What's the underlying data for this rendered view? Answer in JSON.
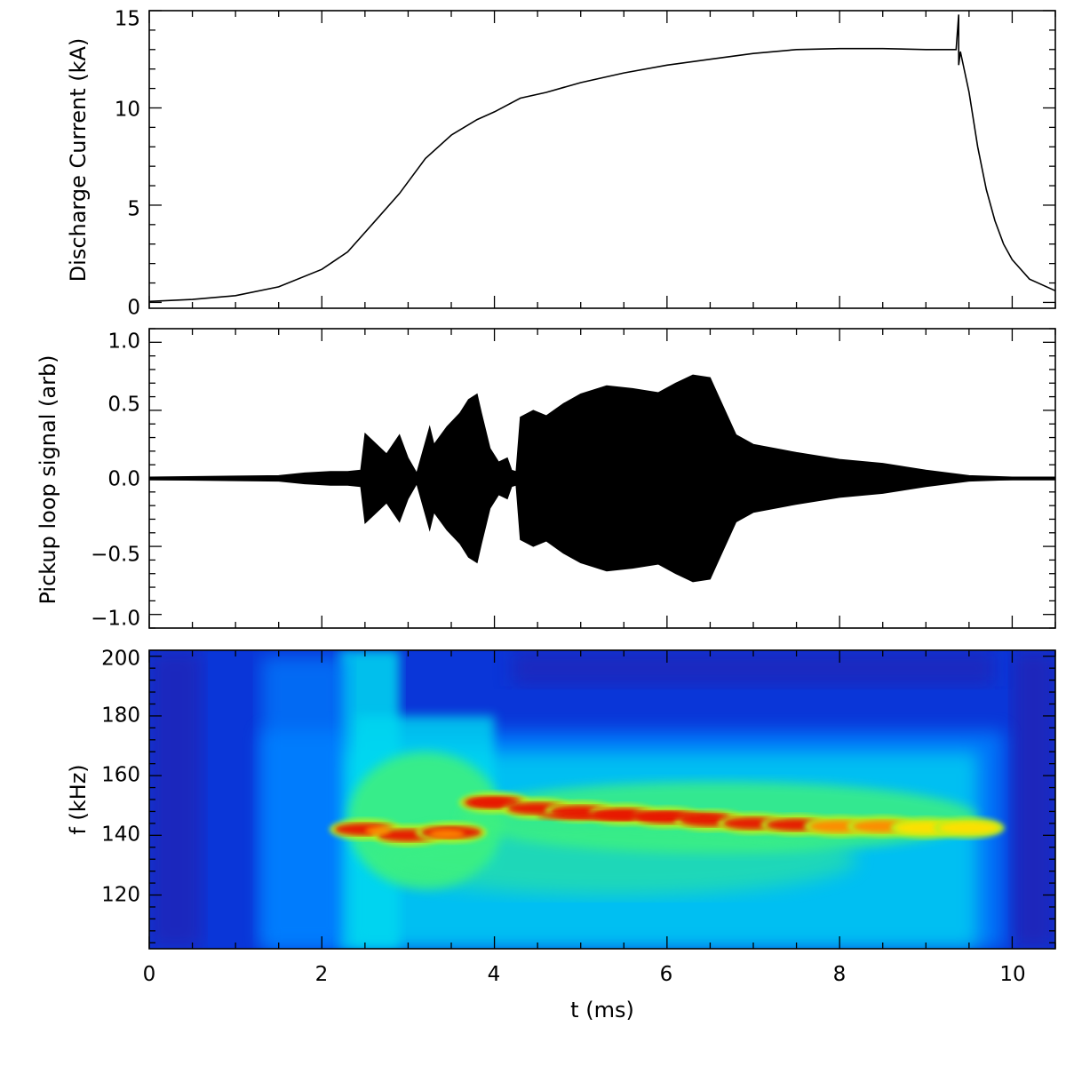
{
  "chart_data": [
    {
      "type": "line",
      "panel": "top",
      "ylabel": "Discharge Current (kA)",
      "xlim": [
        0,
        10.5
      ],
      "ylim": [
        -0.3,
        15
      ],
      "yticks": [
        0,
        5,
        10,
        15
      ],
      "ytick_labels": [
        "0",
        "5",
        "10",
        "15"
      ],
      "series": [
        {
          "x": [
            0,
            0.5,
            1.0,
            1.5,
            2.0,
            2.3,
            2.6,
            2.9,
            3.2,
            3.5,
            3.8,
            4.0,
            4.3,
            4.6,
            5.0,
            5.5,
            6.0,
            6.5,
            7.0,
            7.5,
            8.0,
            8.5,
            9.0,
            9.35,
            9.38,
            9.38,
            9.4,
            9.5,
            9.6,
            9.7,
            9.8,
            9.9,
            10.0,
            10.2,
            10.5
          ],
          "y": [
            0.05,
            0.15,
            0.35,
            0.8,
            1.7,
            2.6,
            4.1,
            5.6,
            7.4,
            8.6,
            9.4,
            9.8,
            10.5,
            10.8,
            11.3,
            11.8,
            12.2,
            12.5,
            12.8,
            13.0,
            13.05,
            13.05,
            13.0,
            13.0,
            14.8,
            12.2,
            12.9,
            10.8,
            8.0,
            5.8,
            4.2,
            3.0,
            2.2,
            1.2,
            0.6
          ]
        }
      ]
    },
    {
      "type": "area",
      "panel": "middle",
      "ylabel": "Pickup loop signal (arb)",
      "xlim": [
        0,
        10.5
      ],
      "ylim": [
        -1.1,
        1.1
      ],
      "yticks": [
        -1.0,
        -0.5,
        0.0,
        0.5,
        1.0
      ],
      "ytick_labels": [
        "−1.0",
        "−0.5",
        "0.0",
        "0.5",
        "1.0"
      ],
      "envelope": {
        "x": [
          0,
          1.5,
          1.8,
          2.1,
          2.3,
          2.45,
          2.5,
          2.6,
          2.75,
          2.9,
          3.0,
          3.1,
          3.25,
          3.3,
          3.45,
          3.6,
          3.7,
          3.8,
          3.85,
          3.95,
          4.05,
          4.15,
          4.2,
          4.25,
          4.3,
          4.45,
          4.6,
          4.8,
          5.0,
          5.3,
          5.6,
          5.9,
          6.1,
          6.3,
          6.5,
          6.6,
          6.8,
          7.0,
          7.5,
          8.0,
          8.5,
          9.0,
          9.5,
          10.0,
          10.5
        ],
        "upper": [
          0.01,
          0.02,
          0.04,
          0.05,
          0.05,
          0.06,
          0.33,
          0.27,
          0.18,
          0.32,
          0.15,
          0.04,
          0.38,
          0.25,
          0.38,
          0.48,
          0.58,
          0.62,
          0.48,
          0.22,
          0.12,
          0.15,
          0.06,
          0.05,
          0.45,
          0.5,
          0.46,
          0.55,
          0.62,
          0.68,
          0.66,
          0.63,
          0.7,
          0.76,
          0.74,
          0.6,
          0.32,
          0.25,
          0.19,
          0.14,
          0.11,
          0.06,
          0.02,
          0.01,
          0.01
        ],
        "lower": [
          -0.01,
          -0.02,
          -0.04,
          -0.05,
          -0.05,
          -0.06,
          -0.33,
          -0.27,
          -0.18,
          -0.32,
          -0.15,
          -0.04,
          -0.38,
          -0.25,
          -0.38,
          -0.48,
          -0.58,
          -0.62,
          -0.48,
          -0.22,
          -0.12,
          -0.15,
          -0.06,
          -0.05,
          -0.45,
          -0.5,
          -0.46,
          -0.55,
          -0.62,
          -0.68,
          -0.66,
          -0.63,
          -0.7,
          -0.76,
          -0.74,
          -0.6,
          -0.32,
          -0.25,
          -0.19,
          -0.14,
          -0.11,
          -0.06,
          -0.02,
          -0.01,
          -0.01
        ]
      }
    },
    {
      "type": "heatmap",
      "panel": "bottom",
      "ylabel": "f (kHz)",
      "xlabel": "t (ms)",
      "xlim": [
        0,
        10.5
      ],
      "ylim": [
        102,
        202
      ],
      "yticks": [
        120,
        140,
        160,
        180,
        200
      ],
      "ytick_labels": [
        "120",
        "140",
        "160",
        "180",
        "200"
      ],
      "xticks": [
        0,
        2,
        4,
        6,
        8,
        10
      ],
      "xtick_labels": [
        "0",
        "2",
        "4",
        "6",
        "8",
        "10"
      ],
      "colormap": [
        "#2a1aa8",
        "#0a36d8",
        "#0080ff",
        "#00d8f0",
        "#3cf080",
        "#b8f01e",
        "#ffe000",
        "#ff8a00",
        "#e81400"
      ],
      "ridge": {
        "t": [
          2.5,
          3.0,
          3.5,
          4.0,
          4.5,
          5.0,
          5.5,
          6.0,
          6.5,
          7.0,
          7.5,
          8.0,
          8.5,
          9.0,
          9.5
        ],
        "f": [
          142,
          140,
          141,
          151,
          149,
          148,
          147,
          146,
          145,
          144,
          143.5,
          143,
          143,
          142.5,
          142.5
        ],
        "level": [
          0.8,
          0.85,
          0.82,
          0.9,
          0.92,
          0.95,
          0.98,
          0.98,
          0.95,
          0.88,
          0.8,
          0.72,
          0.62,
          0.52,
          0.4
        ]
      }
    }
  ],
  "colors": {
    "line": "#000000",
    "axes": "#000000"
  }
}
